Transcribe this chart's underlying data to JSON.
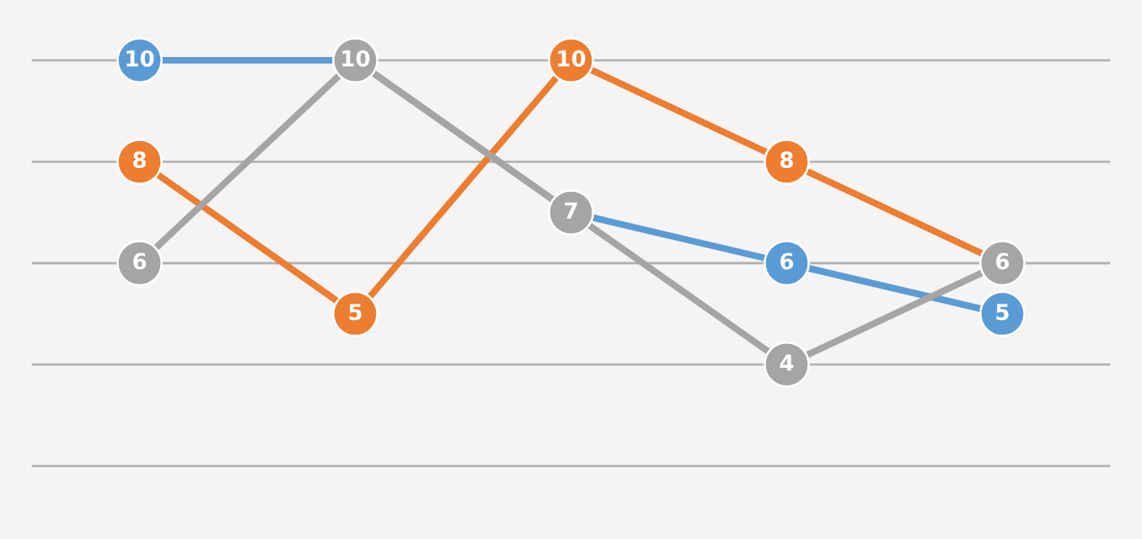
{
  "chart_data": {
    "type": "line",
    "categories": [
      null,
      null,
      null,
      null,
      null
    ],
    "series": [
      {
        "color": "#5b9bd5",
        "values": [
          10,
          10,
          7,
          6,
          5
        ],
        "value_labels": [
          "10",
          null,
          null,
          "6",
          "5"
        ]
      },
      {
        "color": "#ed7d31",
        "values": [
          8,
          5,
          10,
          8,
          6
        ],
        "value_labels": [
          "8",
          "5",
          "10",
          "8",
          null
        ]
      },
      {
        "color": "#a5a5a5",
        "values": [
          6,
          10,
          7,
          4,
          6
        ],
        "value_labels": [
          "6",
          "10",
          "7",
          "4",
          "6"
        ]
      }
    ],
    "ylim": [
      0.56,
      11.19
    ],
    "yticks": [
      {
        "value": 2,
        "label": null
      },
      {
        "value": 4,
        "label": null
      },
      {
        "value": 6,
        "label": null
      },
      {
        "value": 8,
        "label": null
      },
      {
        "value": 10,
        "label": null
      }
    ],
    "grid": "y",
    "marker": "circle",
    "line_style": "solid"
  }
}
